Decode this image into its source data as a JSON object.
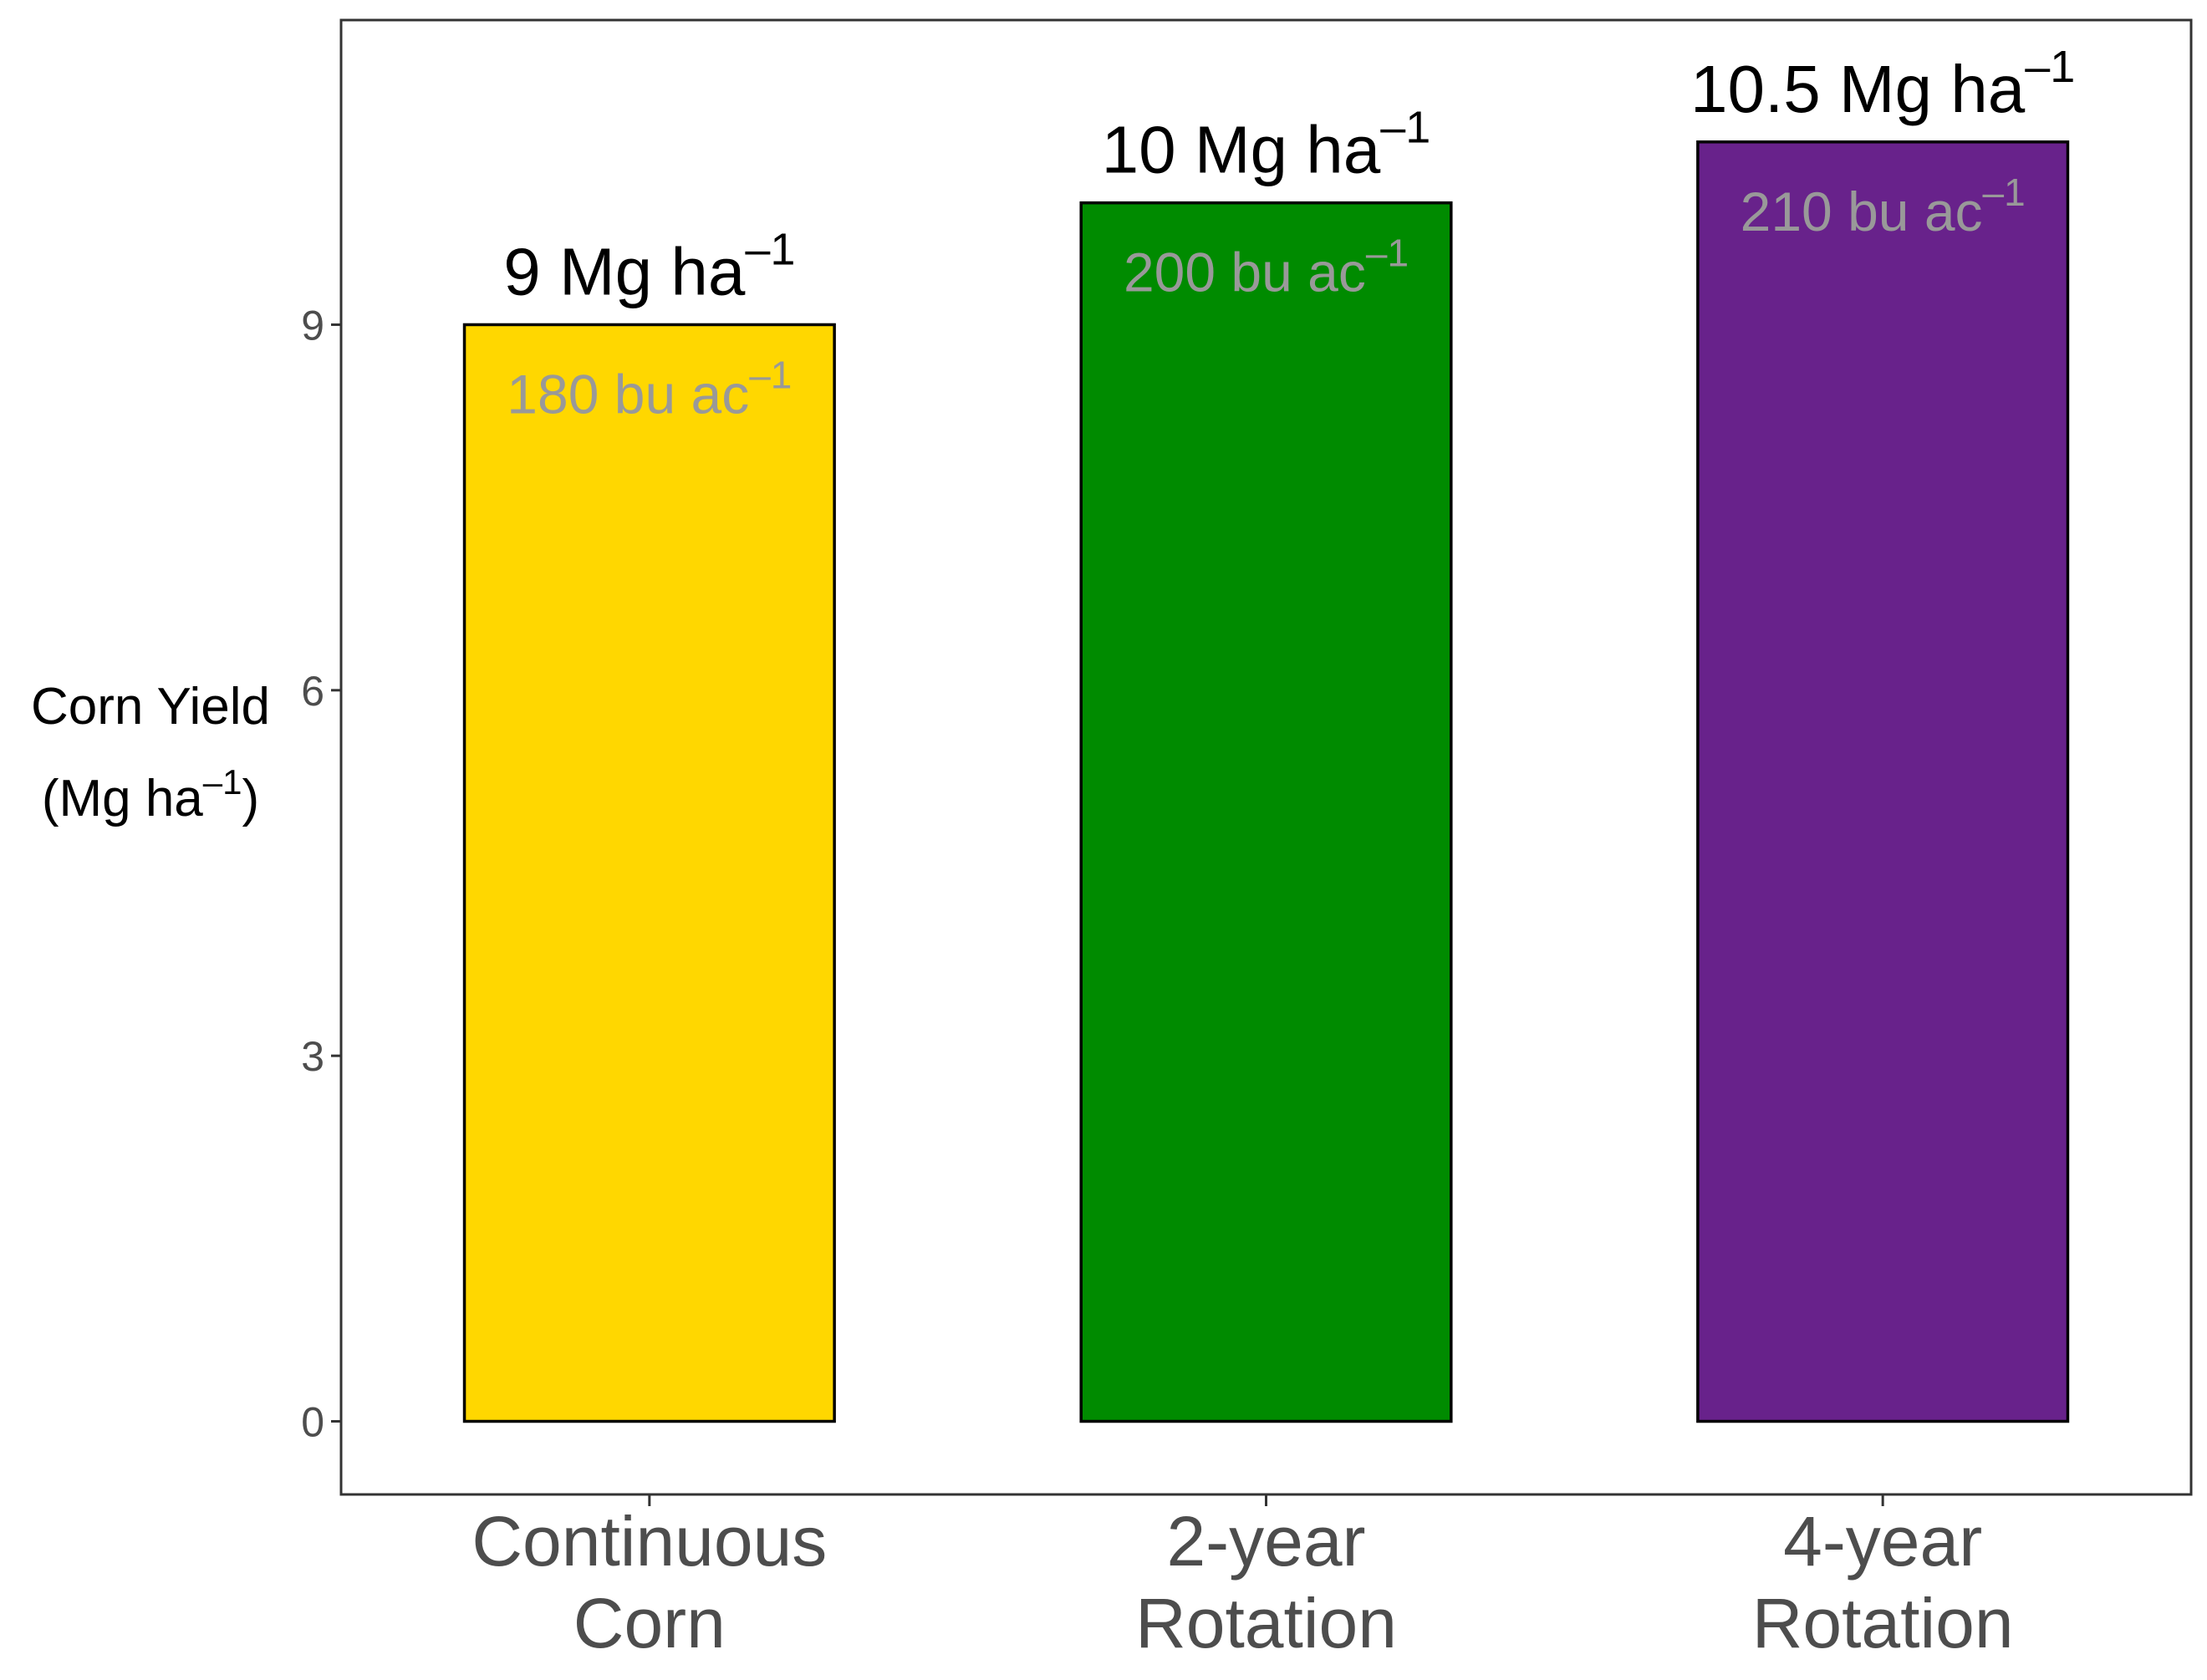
{
  "chart_data": {
    "type": "bar",
    "title": "",
    "xlabel": "",
    "ylabel": {
      "line1": "Corn Yield",
      "line2_prefix": "(Mg  ha",
      "line2_sup": "–1",
      "line2_suffix": ")"
    },
    "categories": [
      [
        "Continuous",
        "Corn"
      ],
      [
        "2-year",
        "Rotation"
      ],
      [
        "4-year",
        "Rotation"
      ]
    ],
    "values": [
      9,
      10,
      10.5
    ],
    "bar_colors": [
      "#FFD700",
      "#008B00",
      "#68228B"
    ],
    "labels_top": [
      {
        "main": "9 Mg ha",
        "sup": "–1"
      },
      {
        "main": "10 Mg ha",
        "sup": "–1"
      },
      {
        "main": "10.5 Mg ha",
        "sup": "–1"
      }
    ],
    "labels_inner": [
      {
        "main": "180 bu ac",
        "sup": "–1"
      },
      {
        "main": "200 bu ac",
        "sup": "–1"
      },
      {
        "main": "210 bu ac",
        "sup": "–1"
      }
    ],
    "inner_label_color": "#999999",
    "yticks": [
      0,
      3,
      6,
      9
    ],
    "ylim": [
      -0.6,
      11.5
    ],
    "grid": false,
    "legend": "none"
  }
}
